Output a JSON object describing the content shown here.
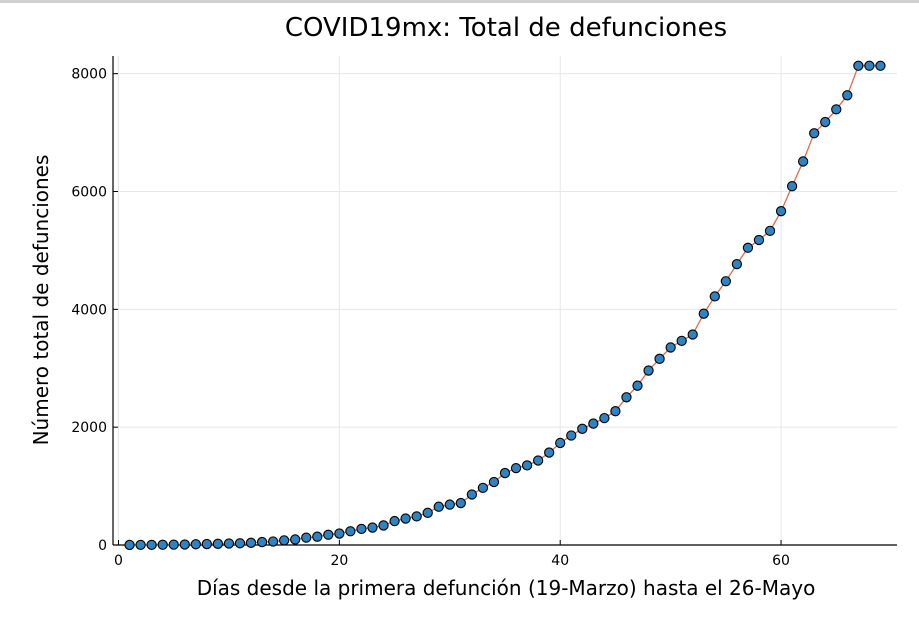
{
  "chart_data": {
    "type": "line",
    "title": "COVID19mx: Total de defunciones",
    "xlabel": "Días desde la primera defunción (19-Marzo) hasta el 26-Mayo",
    "ylabel": "Número total de defunciones",
    "xlim": [
      -0.5,
      70.5
    ],
    "ylim": [
      0,
      8300
    ],
    "xticks": [
      0,
      20,
      40,
      60
    ],
    "yticks": [
      0,
      2000,
      4000,
      6000,
      8000
    ],
    "grid": true,
    "legend": "none",
    "colors": {
      "line": "#e26a4a",
      "marker": "#2f83c0",
      "marker_edge": "#000000",
      "grid": "#e6e6e6",
      "axis": "#000000"
    },
    "x": [
      1,
      2,
      3,
      4,
      5,
      6,
      7,
      8,
      9,
      10,
      11,
      12,
      13,
      14,
      15,
      16,
      17,
      18,
      19,
      20,
      21,
      22,
      23,
      24,
      25,
      26,
      27,
      28,
      29,
      30,
      31,
      32,
      33,
      34,
      35,
      36,
      37,
      38,
      39,
      40,
      41,
      42,
      43,
      44,
      45,
      46,
      47,
      48,
      49,
      50,
      51,
      52,
      53,
      54,
      55,
      56,
      57,
      58,
      59,
      60,
      61,
      62,
      63,
      64,
      65,
      66,
      67,
      68,
      69
    ],
    "y": [
      1,
      2,
      2,
      4,
      6,
      8,
      12,
      16,
      20,
      25,
      29,
      37,
      50,
      60,
      79,
      94,
      125,
      141,
      174,
      194,
      233,
      273,
      296,
      332,
      406,
      449,
      486,
      546,
      650,
      686,
      712,
      857,
      970,
      1069,
      1221,
      1305,
      1351,
      1434,
      1569,
      1732,
      1859,
      1972,
      2061,
      2154,
      2271,
      2507,
      2704,
      2961,
      3160,
      3353,
      3465,
      3573,
      3926,
      4220,
      4477,
      4767,
      5045,
      5177,
      5332,
      5666,
      6090,
      6510,
      6989,
      7179,
      7394,
      7633,
      8134,
      8134,
      8134
    ],
    "series": [
      {
        "values_ref": "y"
      }
    ]
  }
}
